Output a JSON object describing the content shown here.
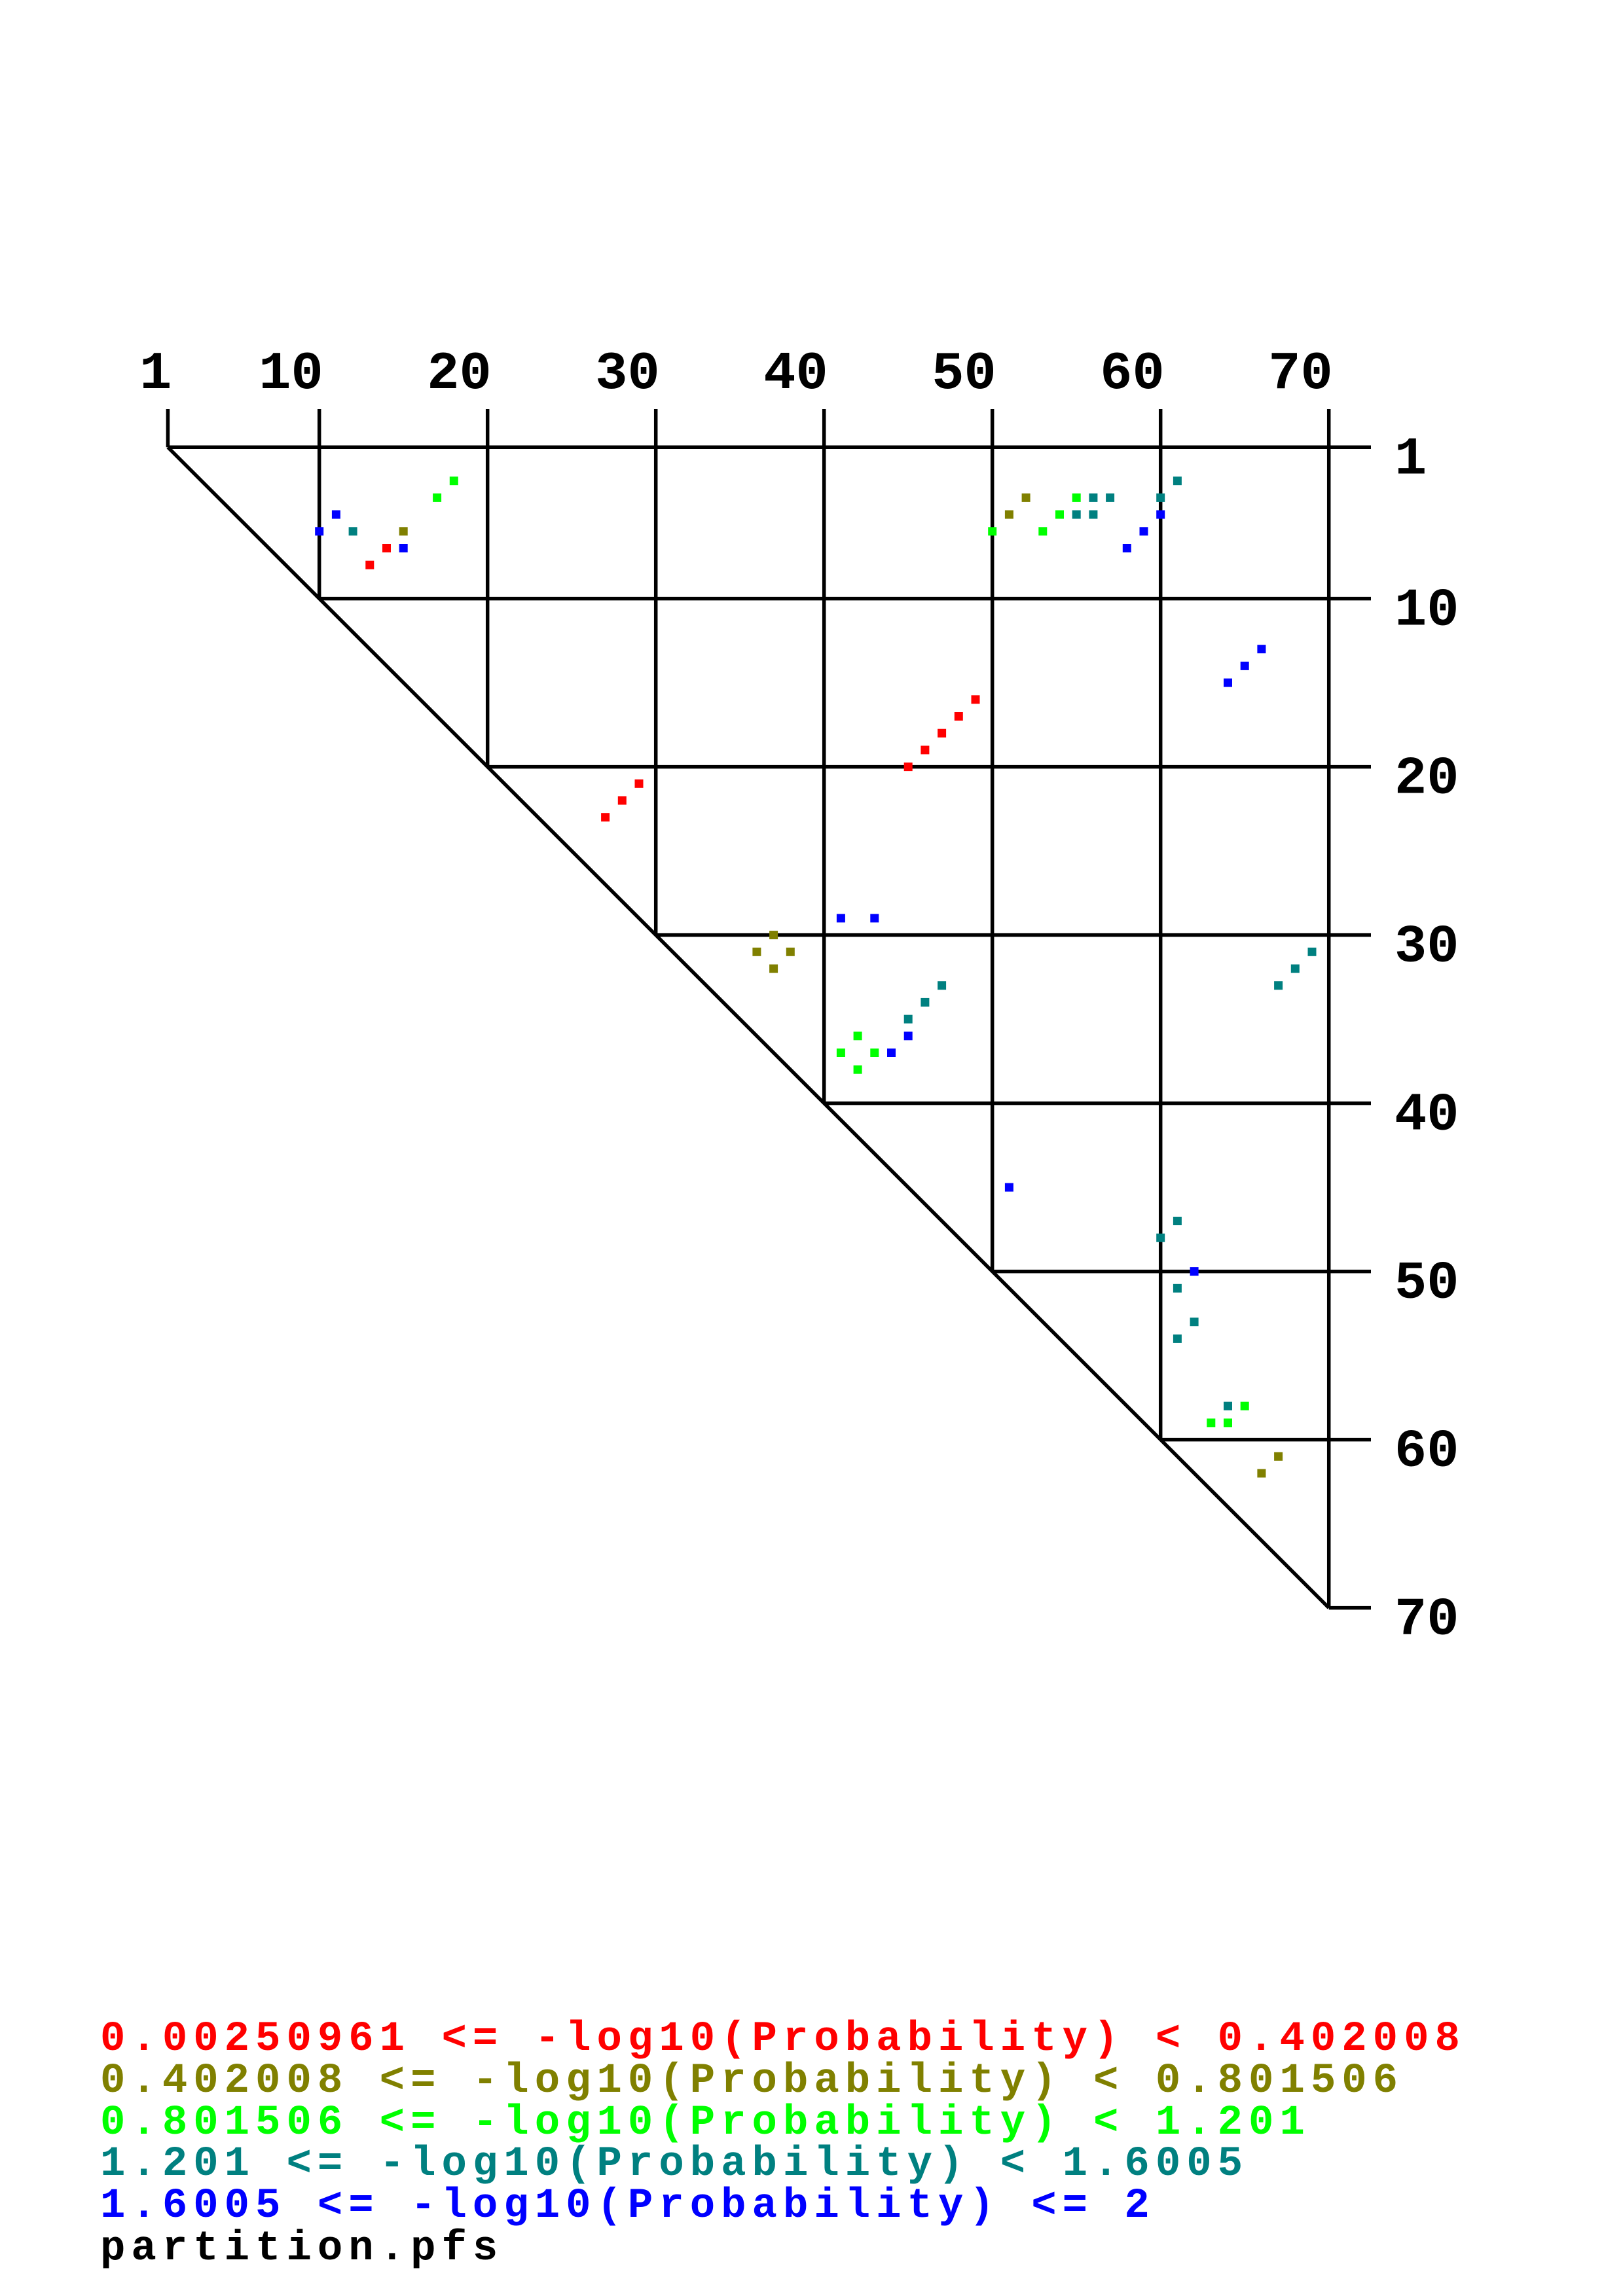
{
  "chart_data": {
    "type": "scatter",
    "subtype": "rna-dot-plot-upper-triangle",
    "sequence_length": 70,
    "tick_labels": [
      "1",
      "10",
      "20",
      "30",
      "40",
      "50",
      "60",
      "70"
    ],
    "tick_values": [
      1,
      10,
      20,
      30,
      40,
      50,
      60,
      70
    ],
    "grid": true,
    "legend_placement": "bottom-left",
    "legend": [
      {
        "label": "0.00250961 <= -log10(Probability) <  0.402008",
        "color": "#ff0000"
      },
      {
        "label": "0.402008 <= -log10(Probability) <  0.801506",
        "color": "#808000"
      },
      {
        "label": "0.801506 <= -log10(Probability) <  1.201",
        "color": "#00ff00"
      },
      {
        "label": "1.201 <= -log10(Probability) <  1.6005",
        "color": "#008080"
      },
      {
        "label": "1.6005 <= -log10(Probability) <= 2",
        "color": "#0000ff"
      }
    ],
    "points_fields": [
      "i",
      "j",
      "bin"
    ],
    "points": [
      [
        3,
        18,
        2
      ],
      [
        4,
        17,
        2
      ],
      [
        5,
        11,
        4
      ],
      [
        6,
        10,
        4
      ],
      [
        6,
        12,
        3
      ],
      [
        6,
        15,
        1
      ],
      [
        7,
        14,
        0
      ],
      [
        7,
        15,
        4
      ],
      [
        8,
        13,
        0
      ],
      [
        3,
        61,
        3
      ],
      [
        4,
        52,
        1
      ],
      [
        4,
        55,
        2
      ],
      [
        4,
        56,
        3
      ],
      [
        4,
        57,
        3
      ],
      [
        4,
        60,
        3
      ],
      [
        5,
        51,
        1
      ],
      [
        5,
        54,
        2
      ],
      [
        5,
        55,
        3
      ],
      [
        5,
        56,
        3
      ],
      [
        5,
        60,
        4
      ],
      [
        6,
        50,
        2
      ],
      [
        6,
        53,
        2
      ],
      [
        6,
        59,
        4
      ],
      [
        7,
        58,
        4
      ],
      [
        13,
        66,
        4
      ],
      [
        14,
        65,
        4
      ],
      [
        15,
        64,
        4
      ],
      [
        16,
        49,
        0
      ],
      [
        17,
        48,
        0
      ],
      [
        18,
        47,
        0
      ],
      [
        19,
        46,
        0
      ],
      [
        20,
        45,
        0
      ],
      [
        21,
        29,
        0
      ],
      [
        22,
        28,
        0
      ],
      [
        23,
        27,
        0
      ],
      [
        29,
        41,
        4
      ],
      [
        29,
        43,
        4
      ],
      [
        30,
        37,
        1
      ],
      [
        31,
        36,
        1
      ],
      [
        31,
        38,
        1
      ],
      [
        32,
        37,
        1
      ],
      [
        31,
        69,
        3
      ],
      [
        32,
        68,
        3
      ],
      [
        33,
        67,
        3
      ],
      [
        33,
        47,
        3
      ],
      [
        34,
        46,
        3
      ],
      [
        35,
        45,
        3
      ],
      [
        36,
        45,
        4
      ],
      [
        36,
        42,
        2
      ],
      [
        37,
        41,
        2
      ],
      [
        37,
        43,
        2
      ],
      [
        37,
        44,
        4
      ],
      [
        38,
        42,
        2
      ],
      [
        45,
        51,
        4
      ],
      [
        47,
        61,
        3
      ],
      [
        48,
        60,
        3
      ],
      [
        50,
        62,
        4
      ],
      [
        51,
        61,
        3
      ],
      [
        53,
        62,
        3
      ],
      [
        54,
        61,
        3
      ],
      [
        58,
        64,
        3
      ],
      [
        58,
        65,
        2
      ],
      [
        59,
        63,
        2
      ],
      [
        59,
        64,
        2
      ],
      [
        61,
        67,
        1
      ],
      [
        62,
        66,
        1
      ]
    ]
  },
  "filename": "partition.pfs"
}
